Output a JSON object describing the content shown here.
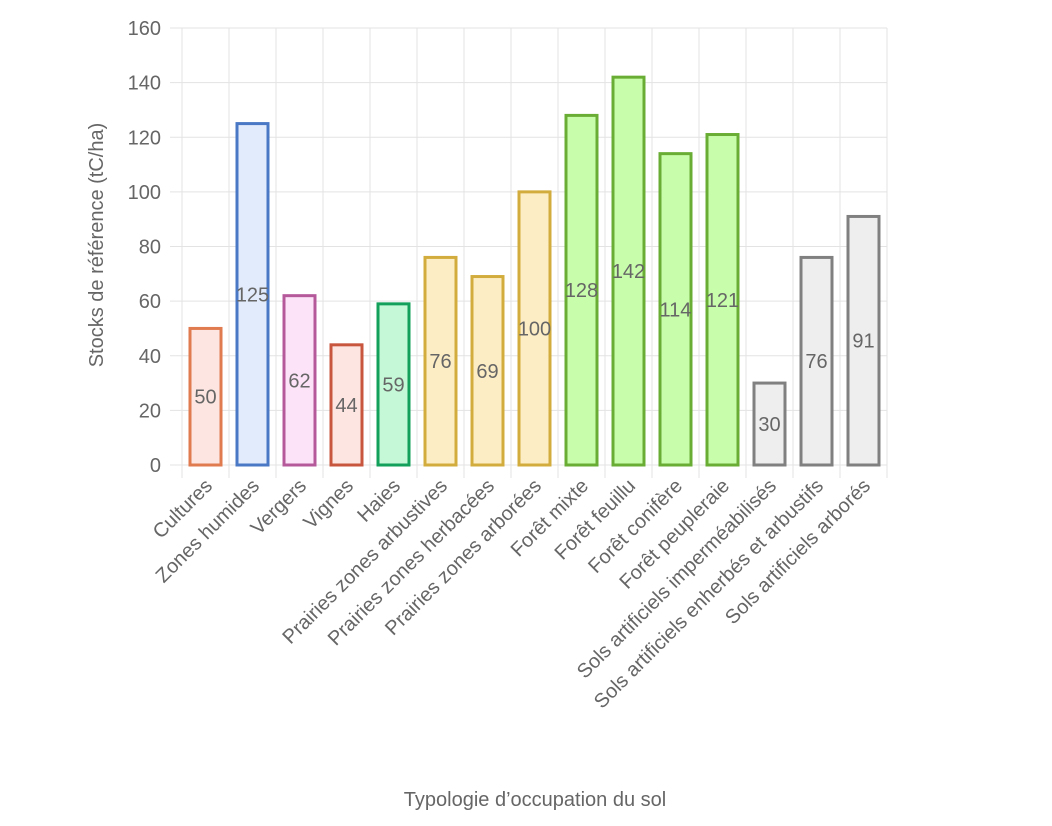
{
  "chart_data": {
    "type": "bar",
    "title": "",
    "xlabel": "Typologie d’occupation du sol",
    "ylabel": "Stocks de référence (tC/ha)",
    "ylim": [
      0,
      160
    ],
    "yticks": [
      0,
      20,
      40,
      60,
      80,
      100,
      120,
      140,
      160
    ],
    "grid": true,
    "legend": "none",
    "categories": [
      "Cultures",
      "Zones humides",
      "Vergers",
      "Vignes",
      "Haies",
      "Prairies zones arbustives",
      "Prairies zones herbacées",
      "Prairies zones arborées",
      "Forêt mixte",
      "Forêt feuillu",
      "Forêt conifère",
      "Forêt peupleraie",
      "Sols artificiels imperméabilisés",
      "Sols artificiels enherbés et arbustifs",
      "Sols artificiels arborés"
    ],
    "values": [
      50,
      125,
      62,
      44,
      59,
      76,
      69,
      100,
      128,
      142,
      114,
      121,
      30,
      76,
      91
    ],
    "data_labels": [
      "50",
      "125",
      "62",
      "44",
      "59",
      "76",
      "69",
      "100",
      "128",
      "142",
      "114",
      "121",
      "30",
      "76",
      "91"
    ],
    "fill_colors": [
      "#fde6e1",
      "#e2ebfb",
      "#fde3f8",
      "#fde6e1",
      "#c4f8d6",
      "#fdedc4",
      "#fdedc4",
      "#fdedc4",
      "#c8fdab",
      "#c8fdab",
      "#c8fdab",
      "#c8fdab",
      "#eeeeee",
      "#eeeeee",
      "#eeeeee"
    ],
    "border_colors": [
      "#e07a4f",
      "#4a78c4",
      "#b5599b",
      "#c8553d",
      "#12a05a",
      "#d2ac3c",
      "#d2ac3c",
      "#d2ac3c",
      "#6aad35",
      "#6aad35",
      "#6aad35",
      "#6aad35",
      "#808080",
      "#808080",
      "#808080"
    ]
  }
}
